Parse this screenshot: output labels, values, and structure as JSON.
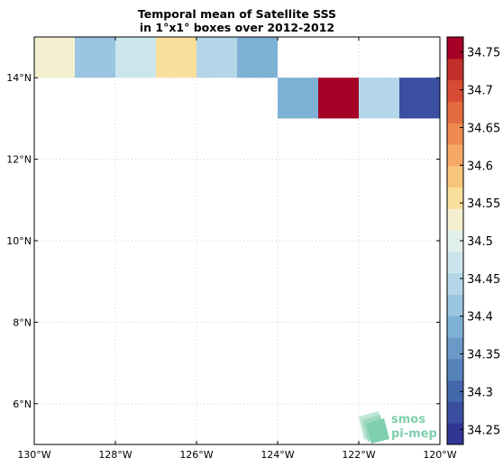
{
  "chart_data": {
    "type": "heatmap",
    "title_line1": "Temporal mean of Satellite SSS",
    "title_line2": "in 1°x1° boxes over 2012-2012",
    "x_range": [
      -130,
      -120
    ],
    "y_range": [
      5,
      15
    ],
    "x_ticks": [
      {
        "value": -130,
        "label": "130°W"
      },
      {
        "value": -128,
        "label": "128°W"
      },
      {
        "value": -126,
        "label": "126°W"
      },
      {
        "value": -124,
        "label": "124°W"
      },
      {
        "value": -122,
        "label": "122°W"
      },
      {
        "value": -120,
        "label": "120°W"
      }
    ],
    "y_ticks": [
      {
        "value": 6,
        "label": "6°N"
      },
      {
        "value": 8,
        "label": "8°N"
      },
      {
        "value": 10,
        "label": "10°N"
      },
      {
        "value": 12,
        "label": "12°N"
      },
      {
        "value": 14,
        "label": "14°N"
      }
    ],
    "grid": true,
    "cells": [
      {
        "lon": -130,
        "lat": 14,
        "value": 34.54
      },
      {
        "lon": -129,
        "lat": 14,
        "value": 34.42
      },
      {
        "lon": -128,
        "lat": 14,
        "value": 34.48
      },
      {
        "lon": -127,
        "lat": 14,
        "value": 34.57
      },
      {
        "lon": -126,
        "lat": 14,
        "value": 34.44
      },
      {
        "lon": -125,
        "lat": 14,
        "value": 34.38
      },
      {
        "lon": -124,
        "lat": 13,
        "value": 34.38
      },
      {
        "lon": -123,
        "lat": 13,
        "value": 34.75
      },
      {
        "lon": -122,
        "lat": 13,
        "value": 34.44
      },
      {
        "lon": -121,
        "lat": 13,
        "value": 34.26
      }
    ],
    "colorbar": {
      "min": 34.23,
      "max": 34.77,
      "ticks": [
        "34.25",
        "34.3",
        "34.35",
        "34.4",
        "34.45",
        "34.5",
        "34.55",
        "34.6",
        "34.65",
        "34.7",
        "34.75"
      ],
      "colors": [
        "#313695",
        "#3a4fa0",
        "#4467ab",
        "#5482b9",
        "#6a99c8",
        "#7fb0d5",
        "#9bc5e0",
        "#b3d7e8",
        "#cce5ed",
        "#e1f0eb",
        "#f4f0cf",
        "#f9df9c",
        "#f8c57c",
        "#f6a966",
        "#ef8a52",
        "#e46a41",
        "#d74b34",
        "#c22f2a",
        "#a50026"
      ]
    },
    "logo_line1": "smos",
    "logo_line2": "pi-mep"
  }
}
